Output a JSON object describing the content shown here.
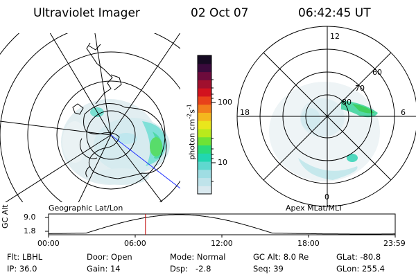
{
  "header": {
    "title": "Ultraviolet Imager",
    "date": "02 Oct 07",
    "time": "06:42:45 UT"
  },
  "left_map": {
    "label": "Geographic Lat/Lon"
  },
  "right_map": {
    "label": "Apex MLat/MLT",
    "mlt_labels": {
      "top": "12",
      "bottom": "0",
      "left": "18",
      "right": "6"
    },
    "lat_labels": [
      "80",
      "70",
      "60"
    ]
  },
  "colorbar": {
    "unit_label": "photon cm",
    "unit_exp1": "-2",
    "unit_s": "s",
    "unit_exp2": "-1",
    "tick_labels": [
      "100",
      "10"
    ],
    "colors": [
      "#d9e9ef",
      "#bfe3ea",
      "#9fdde3",
      "#5fd8cf",
      "#22d6b0",
      "#2adb7a",
      "#6ee336",
      "#b9ea1c",
      "#e9e61c",
      "#f4b81e",
      "#f27e1c",
      "#e8421a",
      "#d2121e",
      "#a0102e",
      "#6d0b3c",
      "#3a0a3c",
      "#160a22"
    ]
  },
  "orbit_plot": {
    "ylabel": "GC Alt",
    "ytick_top": "9.0",
    "ytick_bottom": "1.8",
    "xticks": [
      "00:00",
      "06:00",
      "12:00",
      "18:00",
      "23:59"
    ],
    "current_time_hours": 6.71,
    "colors": {
      "curve": "#000000",
      "marker": "#c00000"
    }
  },
  "info": {
    "flt_label": "Flt:",
    "flt_value": "LBHL",
    "ip_label": "IP:",
    "ip_value": "36.0",
    "door_label": "Door:",
    "door_value": "Open",
    "gain_label": "Gain:",
    "gain_value": "14",
    "mode_label": "Mode:",
    "mode_value": "Normal",
    "dsp_label": "Dsp:",
    "dsp_value": "-2.8",
    "gcalt_label": "GC Alt:",
    "gcalt_value": "8.0 Re",
    "seq_label": "Seq:",
    "seq_value": "39",
    "glat_label": "GLat:",
    "glat_value": "-80.8",
    "glon_label": "GLon:",
    "glon_value": "255.4"
  }
}
